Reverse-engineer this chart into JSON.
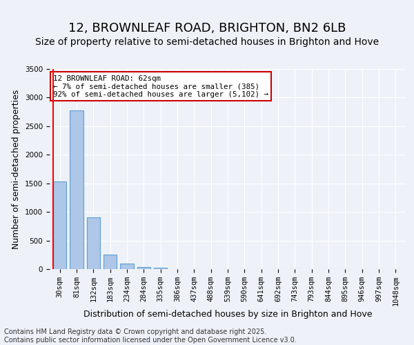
{
  "title": "12, BROWNLEAF ROAD, BRIGHTON, BN2 6LB",
  "subtitle": "Size of property relative to semi-detached houses in Brighton and Hove",
  "xlabel": "Distribution of semi-detached houses by size in Brighton and Hove",
  "ylabel": "Number of semi-detached properties",
  "bin_labels": [
    "30sqm",
    "81sqm",
    "132sqm",
    "183sqm",
    "234sqm",
    "284sqm",
    "335sqm",
    "386sqm",
    "437sqm",
    "488sqm",
    "539sqm",
    "590sqm",
    "641sqm",
    "692sqm",
    "743sqm",
    "793sqm",
    "844sqm",
    "895sqm",
    "946sqm",
    "997sqm",
    "1048sqm"
  ],
  "bar_values": [
    1535,
    2780,
    900,
    250,
    95,
    35,
    20,
    0,
    0,
    0,
    0,
    0,
    0,
    0,
    0,
    0,
    0,
    0,
    0,
    0,
    0
  ],
  "bar_color": "#aec6e8",
  "bar_edge_color": "#5a9fd4",
  "vline_color": "#ff0000",
  "annotation_text": "12 BROWNLEAF ROAD: 62sqm\n← 7% of semi-detached houses are smaller (385)\n92% of semi-detached houses are larger (5,102) →",
  "annotation_box_color": "#ffffff",
  "annotation_box_edge": "#cc0000",
  "ylim": [
    0,
    3500
  ],
  "yticks": [
    0,
    500,
    1000,
    1500,
    2000,
    2500,
    3000,
    3500
  ],
  "background_color": "#eef2f8",
  "grid_color": "#ffffff",
  "footer_text": "Contains HM Land Registry data © Crown copyright and database right 2025.\nContains public sector information licensed under the Open Government Licence v3.0.",
  "title_fontsize": 13,
  "subtitle_fontsize": 10,
  "axis_label_fontsize": 9,
  "tick_fontsize": 7.5,
  "footer_fontsize": 7
}
